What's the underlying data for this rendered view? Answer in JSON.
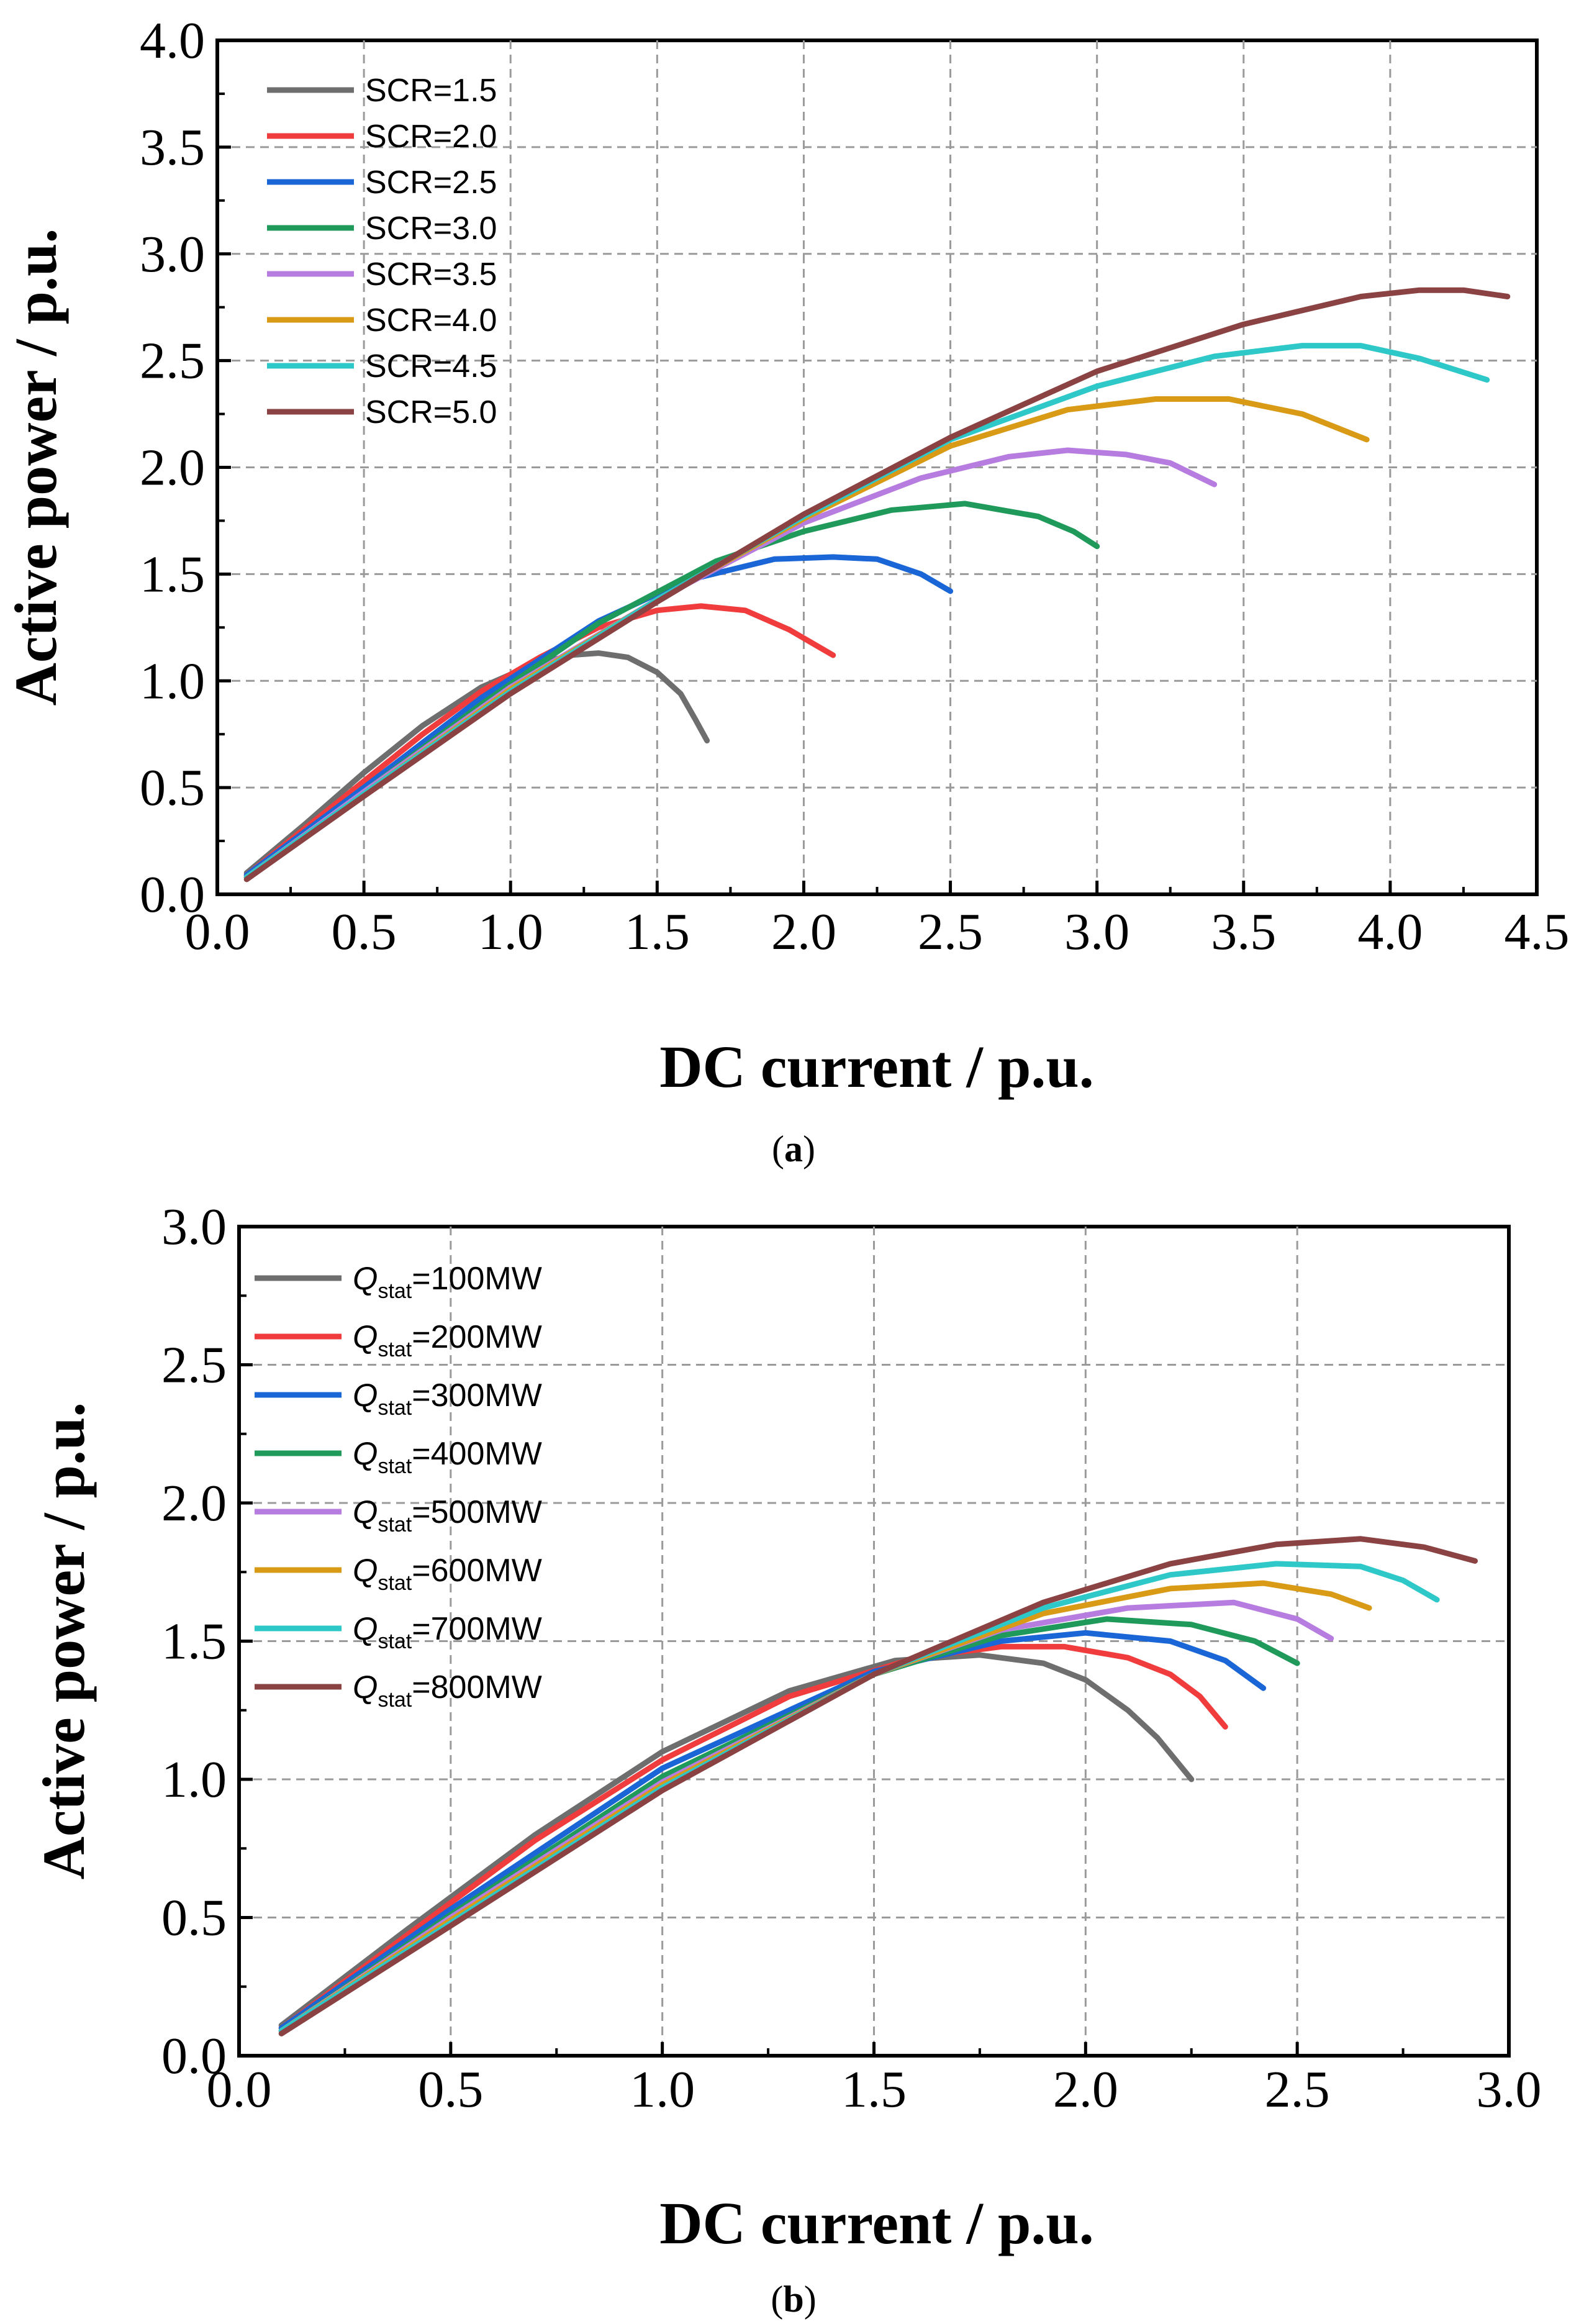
{
  "chart_data": [
    {
      "type": "line",
      "panel_label": "a",
      "xlabel": "DC current / p.u.",
      "ylabel": "Active power / p.u.",
      "xlim": [
        0.0,
        4.5
      ],
      "ylim": [
        0.0,
        4.0
      ],
      "xticks": [
        "0.0",
        "0.5",
        "1.0",
        "1.5",
        "2.0",
        "2.5",
        "3.0",
        "3.5",
        "4.0",
        "4.5"
      ],
      "yticks": [
        "0.0",
        "0.5",
        "1.0",
        "1.5",
        "2.0",
        "2.5",
        "3.0",
        "3.5",
        "4.0"
      ],
      "grid": true,
      "legend_position": "top-left",
      "series": [
        {
          "name": "SCR=1.5",
          "color": "#6e6e6e",
          "x": [
            0.1,
            0.3,
            0.5,
            0.7,
            0.9,
            1.05,
            1.2,
            1.3,
            1.4,
            1.5,
            1.58,
            1.63,
            1.67
          ],
          "y": [
            0.1,
            0.33,
            0.57,
            0.79,
            0.97,
            1.06,
            1.12,
            1.13,
            1.11,
            1.04,
            0.94,
            0.82,
            0.72
          ]
        },
        {
          "name": "SCR=2.0",
          "color": "#f03c3c",
          "x": [
            0.1,
            0.3,
            0.5,
            0.7,
            0.9,
            1.1,
            1.3,
            1.5,
            1.65,
            1.8,
            1.95,
            2.05,
            2.1
          ],
          "y": [
            0.09,
            0.31,
            0.53,
            0.75,
            0.95,
            1.11,
            1.25,
            1.33,
            1.35,
            1.33,
            1.24,
            1.16,
            1.12
          ]
        },
        {
          "name": "SCR=2.5",
          "color": "#1a66d6",
          "x": [
            0.1,
            0.5,
            0.9,
            1.3,
            1.6,
            1.9,
            2.1,
            2.25,
            2.4,
            2.5
          ],
          "y": [
            0.09,
            0.5,
            0.92,
            1.28,
            1.47,
            1.57,
            1.58,
            1.57,
            1.5,
            1.42
          ]
        },
        {
          "name": "SCR=3.0",
          "color": "#1f9a5a",
          "x": [
            0.1,
            0.5,
            0.9,
            1.3,
            1.7,
            2.0,
            2.3,
            2.55,
            2.8,
            2.92,
            3.0
          ],
          "y": [
            0.08,
            0.48,
            0.89,
            1.27,
            1.56,
            1.7,
            1.8,
            1.83,
            1.77,
            1.7,
            1.63
          ]
        },
        {
          "name": "SCR=3.5",
          "color": "#b77ce0",
          "x": [
            0.1,
            0.5,
            1.0,
            1.5,
            2.0,
            2.4,
            2.7,
            2.9,
            3.1,
            3.25,
            3.4
          ],
          "y": [
            0.08,
            0.48,
            0.97,
            1.38,
            1.74,
            1.95,
            2.05,
            2.08,
            2.06,
            2.02,
            1.92
          ]
        },
        {
          "name": "SCR=4.0",
          "color": "#d99a16",
          "x": [
            0.1,
            0.5,
            1.0,
            1.5,
            2.0,
            2.5,
            2.9,
            3.2,
            3.45,
            3.7,
            3.92
          ],
          "y": [
            0.08,
            0.47,
            0.96,
            1.38,
            1.76,
            2.1,
            2.27,
            2.32,
            2.32,
            2.25,
            2.13
          ]
        },
        {
          "name": "SCR=4.5",
          "color": "#2ec8c8",
          "x": [
            0.1,
            0.5,
            1.0,
            1.5,
            2.0,
            2.5,
            3.0,
            3.4,
            3.7,
            3.9,
            4.1,
            4.33
          ],
          "y": [
            0.08,
            0.47,
            0.95,
            1.38,
            1.77,
            2.13,
            2.38,
            2.52,
            2.57,
            2.57,
            2.51,
            2.41
          ]
        },
        {
          "name": "SCR=5.0",
          "color": "#8a4242",
          "x": [
            0.1,
            0.5,
            1.0,
            1.5,
            2.0,
            2.5,
            3.0,
            3.5,
            3.9,
            4.1,
            4.25,
            4.4
          ],
          "y": [
            0.07,
            0.46,
            0.94,
            1.37,
            1.78,
            2.14,
            2.45,
            2.67,
            2.8,
            2.83,
            2.83,
            2.8
          ]
        }
      ]
    },
    {
      "type": "line",
      "panel_label": "b",
      "xlabel": "DC current / p.u.",
      "ylabel": "Active power / p.u.",
      "xlim": [
        0.0,
        3.0
      ],
      "ylim": [
        0.0,
        3.0
      ],
      "xticks": [
        "0.0",
        "0.5",
        "1.0",
        "1.5",
        "2.0",
        "2.5",
        "3.0"
      ],
      "yticks": [
        "0.0",
        "0.5",
        "1.0",
        "1.5",
        "2.0",
        "2.5",
        "3.0"
      ],
      "grid": true,
      "legend_position": "top-left",
      "legend_symbol": "Q",
      "legend_subscript": "stat",
      "series": [
        {
          "name": "=100MW",
          "color": "#6e6e6e",
          "x": [
            0.1,
            0.4,
            0.7,
            1.0,
            1.3,
            1.55,
            1.75,
            1.9,
            2.0,
            2.1,
            2.17,
            2.25
          ],
          "y": [
            0.11,
            0.46,
            0.8,
            1.1,
            1.32,
            1.43,
            1.45,
            1.42,
            1.36,
            1.25,
            1.15,
            1.0
          ]
        },
        {
          "name": "=200MW",
          "color": "#f03c3c",
          "x": [
            0.1,
            0.4,
            0.7,
            1.0,
            1.3,
            1.6,
            1.8,
            1.95,
            2.1,
            2.2,
            2.27,
            2.33
          ],
          "y": [
            0.1,
            0.44,
            0.78,
            1.07,
            1.3,
            1.44,
            1.48,
            1.48,
            1.44,
            1.38,
            1.3,
            1.19
          ]
        },
        {
          "name": "=300MW",
          "color": "#1a66d6",
          "x": [
            0.1,
            0.5,
            1.0,
            1.5,
            1.8,
            2.0,
            2.2,
            2.33,
            2.42
          ],
          "y": [
            0.1,
            0.53,
            1.04,
            1.39,
            1.5,
            1.53,
            1.5,
            1.43,
            1.33
          ]
        },
        {
          "name": "=400MW",
          "color": "#1f9a5a",
          "x": [
            0.1,
            0.5,
            1.0,
            1.5,
            1.8,
            2.05,
            2.25,
            2.4,
            2.5
          ],
          "y": [
            0.09,
            0.51,
            1.01,
            1.38,
            1.52,
            1.58,
            1.56,
            1.5,
            1.42
          ]
        },
        {
          "name": "=500MW",
          "color": "#b77ce0",
          "x": [
            0.1,
            0.5,
            1.0,
            1.5,
            1.8,
            2.1,
            2.35,
            2.5,
            2.58
          ],
          "y": [
            0.09,
            0.5,
            0.99,
            1.38,
            1.54,
            1.62,
            1.64,
            1.58,
            1.51
          ]
        },
        {
          "name": "=600MW",
          "color": "#d99a16",
          "x": [
            0.1,
            0.5,
            1.0,
            1.5,
            1.9,
            2.2,
            2.42,
            2.58,
            2.67
          ],
          "y": [
            0.09,
            0.49,
            0.98,
            1.38,
            1.6,
            1.69,
            1.71,
            1.67,
            1.62
          ]
        },
        {
          "name": "=700MW",
          "color": "#2ec8c8",
          "x": [
            0.1,
            0.5,
            1.0,
            1.5,
            1.9,
            2.2,
            2.45,
            2.65,
            2.75,
            2.83
          ],
          "y": [
            0.09,
            0.48,
            0.97,
            1.38,
            1.62,
            1.74,
            1.78,
            1.77,
            1.72,
            1.65
          ]
        },
        {
          "name": "=800MW",
          "color": "#8a4242",
          "x": [
            0.1,
            0.5,
            1.0,
            1.5,
            1.9,
            2.2,
            2.45,
            2.65,
            2.8,
            2.92
          ],
          "y": [
            0.08,
            0.47,
            0.96,
            1.38,
            1.64,
            1.78,
            1.85,
            1.87,
            1.84,
            1.79
          ]
        }
      ]
    }
  ]
}
